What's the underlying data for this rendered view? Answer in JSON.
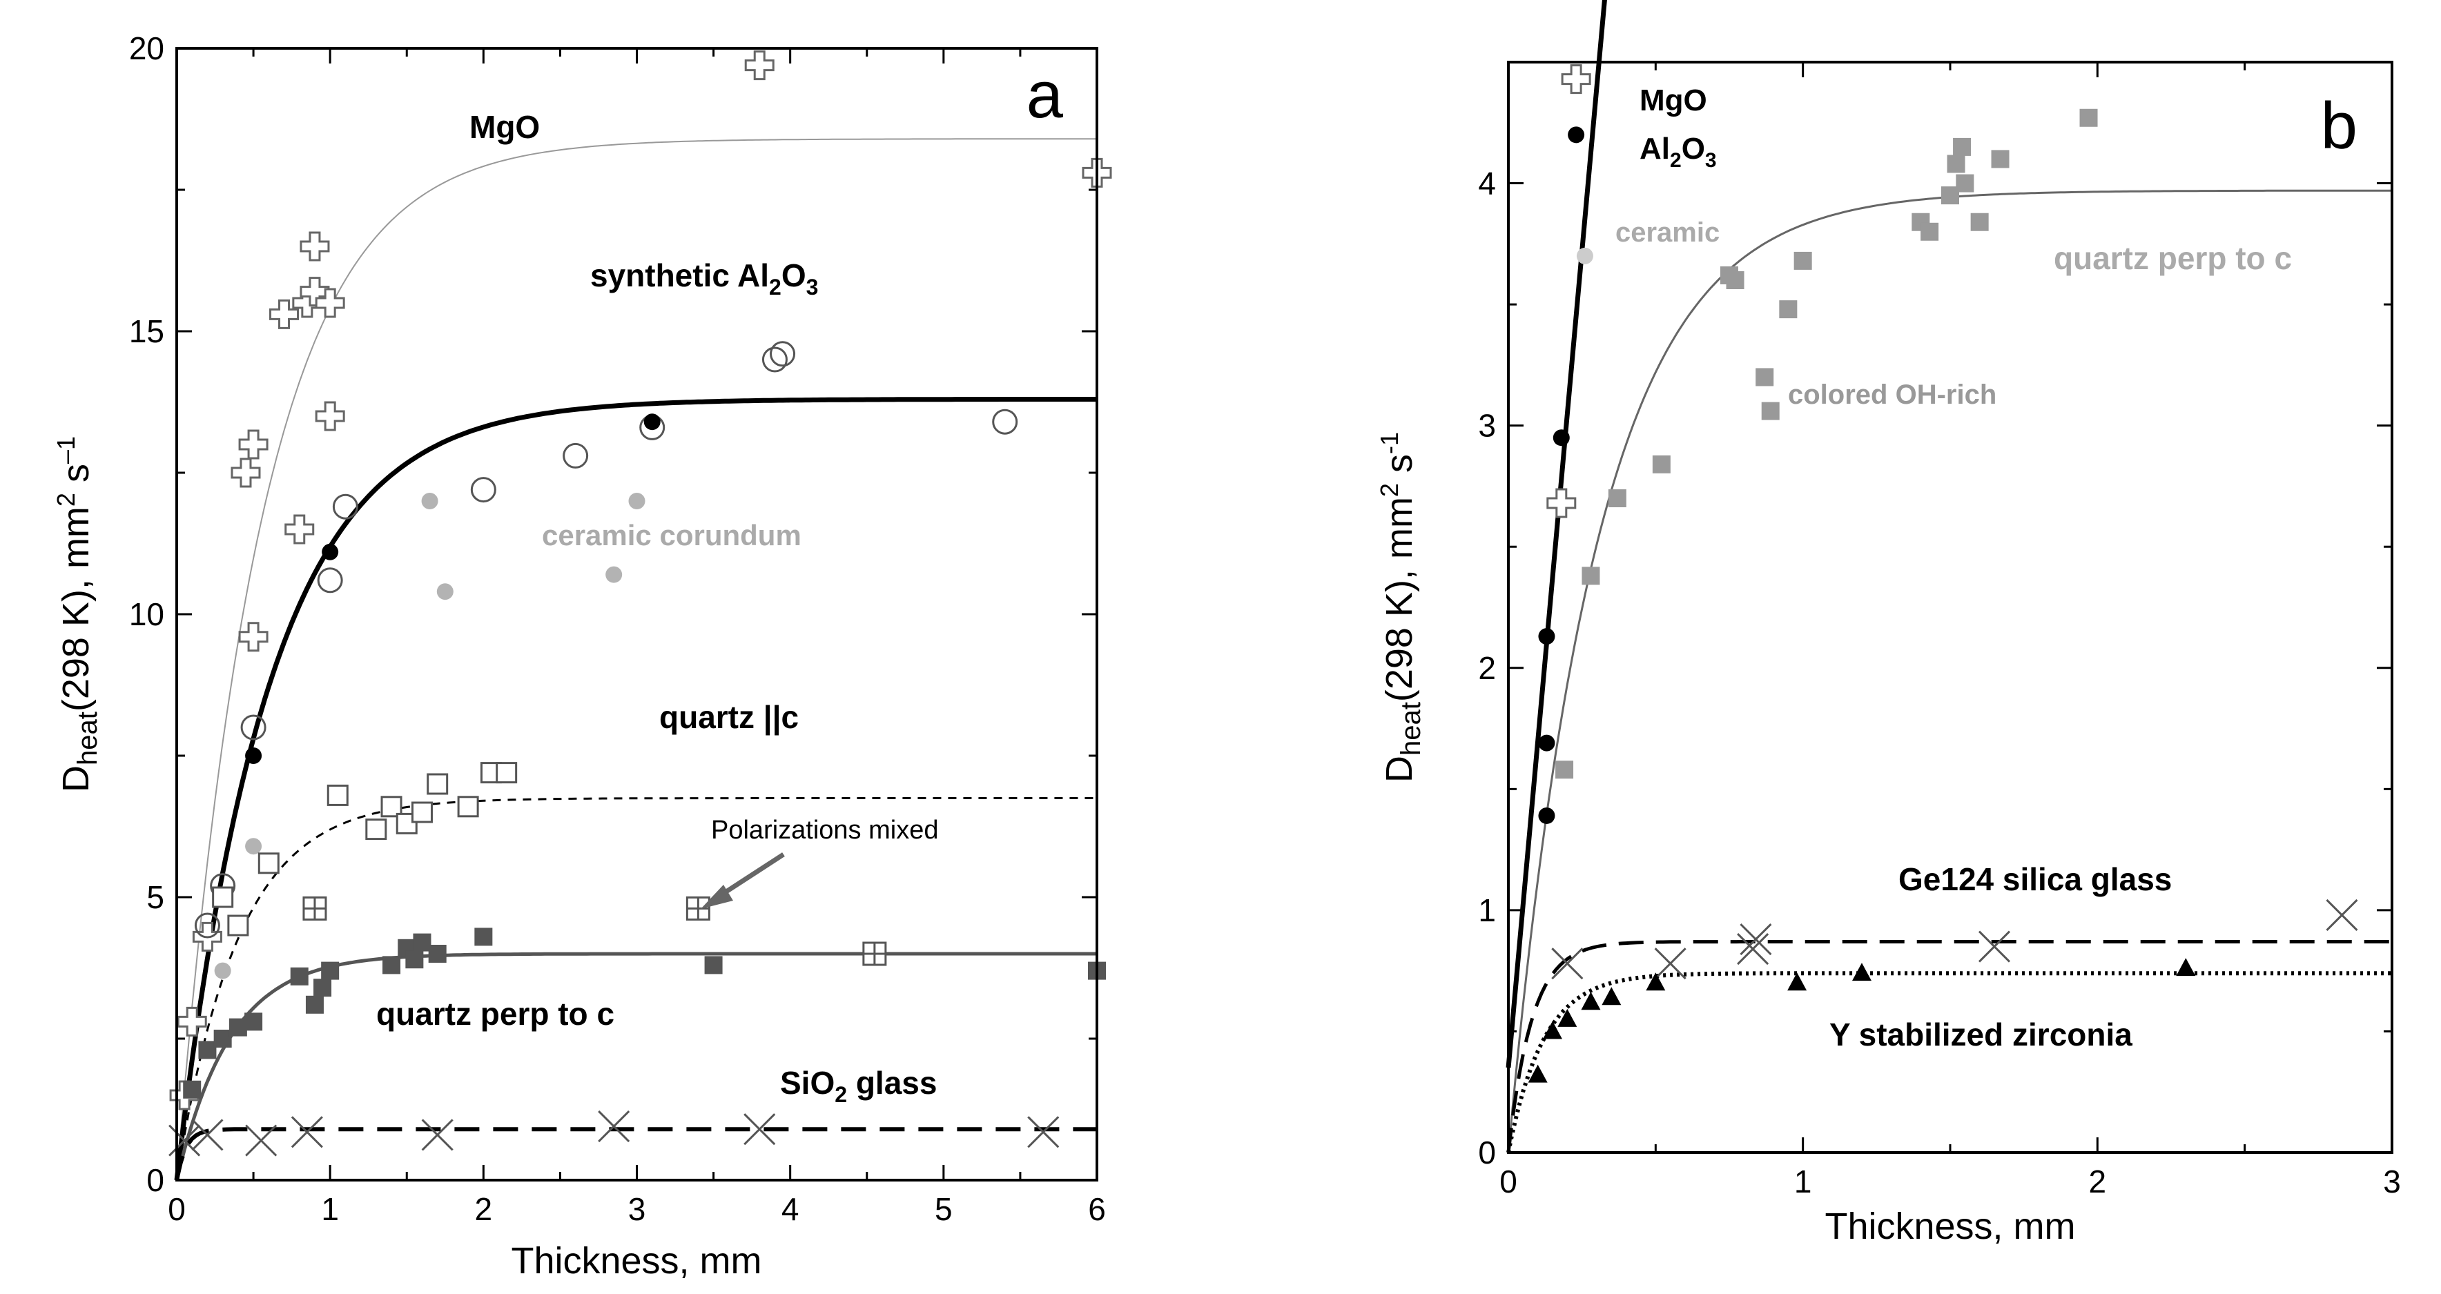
{
  "chart_data": [
    {
      "panel_label": "a",
      "type": "scatter",
      "xlabel": "Thickness, mm",
      "ylabel_parts": {
        "main": "D",
        "sub": "heat",
        "tail": "(298 K),  mm",
        "sup1": "2",
        "mid": " s",
        "sup2": "–1"
      },
      "xlim": [
        0,
        6
      ],
      "ylim": [
        0,
        20
      ],
      "xticks": [
        "0",
        "1",
        "2",
        "3",
        "4",
        "5",
        "6"
      ],
      "yticks": [
        "0",
        "5",
        "10",
        "15",
        "20"
      ],
      "annotations": {
        "mgo": "MgO",
        "al2o3_pre": "synthetic Al",
        "al2o3_sub1": "2",
        "al2o3_mid": "O",
        "al2o3_sub2": "3",
        "ceramic": "ceramic corundum",
        "quartz_par": "quartz ||c",
        "polarizations": "Polarizations mixed",
        "quartz_perp": "quartz perp to c",
        "sio2_pre": "SiO",
        "sio2_sub": "2",
        "sio2_post": " glass"
      },
      "series": [
        {
          "marker": "plus-open",
          "color": "#666666",
          "points": [
            [
              0.05,
              1.5
            ],
            [
              0.1,
              2.8
            ],
            [
              0.2,
              4.3
            ],
            [
              0.45,
              12.5
            ],
            [
              0.5,
              13.0
            ],
            [
              0.5,
              9.6
            ],
            [
              0.8,
              11.5
            ],
            [
              0.7,
              15.3
            ],
            [
              0.85,
              15.5
            ],
            [
              0.9,
              15.7
            ],
            [
              0.9,
              16.5
            ],
            [
              1.0,
              15.5
            ],
            [
              1.0,
              13.5
            ],
            [
              3.8,
              19.7
            ],
            [
              6.0,
              17.8
            ]
          ]
        },
        {
          "marker": "circle-open",
          "color": "#555555",
          "points": [
            [
              0.2,
              4.5
            ],
            [
              0.3,
              5.2
            ],
            [
              0.5,
              8.0
            ],
            [
              1.0,
              10.6
            ],
            [
              1.1,
              11.9
            ],
            [
              2.0,
              12.2
            ],
            [
              2.6,
              12.8
            ],
            [
              3.1,
              13.3
            ],
            [
              3.9,
              14.5
            ],
            [
              3.95,
              14.6
            ],
            [
              5.4,
              13.4
            ]
          ]
        },
        {
          "marker": "circle-filled",
          "color": "#000000",
          "points": [
            [
              0.5,
              7.5
            ],
            [
              1.0,
              11.1
            ],
            [
              3.1,
              13.4
            ]
          ]
        },
        {
          "marker": "circle-filled",
          "color": "#b3b3b3",
          "points": [
            [
              0.3,
              3.7
            ],
            [
              0.5,
              5.9
            ],
            [
              1.65,
              12.0
            ],
            [
              1.75,
              10.4
            ],
            [
              2.85,
              10.7
            ],
            [
              3.0,
              12.0
            ]
          ]
        },
        {
          "marker": "square-open",
          "color": "#555555",
          "points": [
            [
              0.3,
              5.0
            ],
            [
              0.4,
              4.5
            ],
            [
              0.6,
              5.6
            ],
            [
              1.05,
              6.8
            ],
            [
              1.3,
              6.2
            ],
            [
              1.4,
              6.6
            ],
            [
              1.5,
              6.3
            ],
            [
              1.6,
              6.5
            ],
            [
              1.7,
              7.0
            ],
            [
              1.9,
              6.6
            ],
            [
              2.05,
              7.2
            ],
            [
              2.15,
              7.2
            ]
          ]
        },
        {
          "marker": "square-cross",
          "color": "#555555",
          "points": [
            [
              0.9,
              4.8
            ],
            [
              3.4,
              4.8
            ],
            [
              4.55,
              4.0
            ]
          ]
        },
        {
          "marker": "square-filled",
          "color": "#555555",
          "points": [
            [
              0.1,
              1.6
            ],
            [
              0.2,
              2.3
            ],
            [
              0.3,
              2.5
            ],
            [
              0.4,
              2.7
            ],
            [
              0.5,
              2.8
            ],
            [
              0.8,
              3.6
            ],
            [
              0.9,
              3.1
            ],
            [
              0.95,
              3.4
            ],
            [
              1.0,
              3.7
            ],
            [
              1.4,
              3.8
            ],
            [
              1.5,
              4.1
            ],
            [
              1.55,
              3.9
            ],
            [
              1.6,
              4.2
            ],
            [
              1.7,
              4.0
            ],
            [
              2.0,
              4.3
            ],
            [
              3.5,
              3.8
            ],
            [
              6.0,
              3.7
            ]
          ]
        },
        {
          "marker": "x",
          "color": "#555555",
          "points": [
            [
              0.05,
              0.7
            ],
            [
              0.2,
              0.8
            ],
            [
              0.55,
              0.7
            ],
            [
              0.85,
              0.85
            ],
            [
              1.7,
              0.8
            ],
            [
              2.85,
              0.95
            ],
            [
              3.8,
              0.9
            ],
            [
              5.65,
              0.85
            ]
          ]
        }
      ],
      "curves": [
        {
          "name": "MgO",
          "formula": "saturating",
          "a": 18.4,
          "tau": 0.55,
          "color": "#999999",
          "width": 2,
          "dash": "",
          "xmax": 6
        },
        {
          "name": "synthetic Al2O3",
          "formula": "saturating",
          "a": 13.8,
          "tau": 0.6,
          "color": "#000000",
          "width": 7,
          "dash": "",
          "xmax": 6
        },
        {
          "name": "quartz ||c",
          "formula": "saturating",
          "a": 6.75,
          "tau": 0.4,
          "color": "#000000",
          "width": 3,
          "dash": "12 10",
          "xmax": 6
        },
        {
          "name": "quartz perp to c",
          "formula": "saturating",
          "a": 4.0,
          "tau": 0.35,
          "color": "#555555",
          "width": 5,
          "dash": "",
          "xmax": 6
        },
        {
          "name": "SiO2 glass",
          "formula": "saturating",
          "a": 0.9,
          "tau": 0.06,
          "color": "#000000",
          "width": 6,
          "dash": "36 20",
          "xmax": 6
        }
      ]
    },
    {
      "panel_label": "b",
      "type": "scatter",
      "xlabel": "Thickness, mm",
      "ylabel_parts": {
        "main": "D",
        "sub": "heat",
        "tail": "(298 K),  mm",
        "sup1": "2",
        "mid": " s",
        "sup2": "-1"
      },
      "xlim": [
        0,
        3
      ],
      "ylim": [
        0,
        4.5
      ],
      "xticks": [
        "0",
        "1",
        "2",
        "3"
      ],
      "yticks": [
        "0",
        "1",
        "2",
        "3",
        "4"
      ],
      "annotations": {
        "mgo": "MgO",
        "al2o3_pre": "Al",
        "al2o3_sub1": "2",
        "al2o3_mid": "O",
        "al2o3_sub2": "3",
        "ceramic": "ceramic",
        "quartz_perp": "quartz perp to c",
        "colored": "colored OH-rich",
        "ge124": "Ge124 silica glass",
        "ysz": "Y stabilized zirconia"
      },
      "series": [
        {
          "marker": "plus-open",
          "color": "#666666",
          "points": [
            [
              0.23,
              4.43
            ],
            [
              0.18,
              2.68
            ]
          ]
        },
        {
          "marker": "circle-filled",
          "color": "#000000",
          "points": [
            [
              0.23,
              4.2
            ],
            [
              0.18,
              2.95
            ],
            [
              0.13,
              2.13
            ],
            [
              0.13,
              1.69
            ],
            [
              0.13,
              1.39
            ]
          ]
        },
        {
          "marker": "circle-filled",
          "color": "#cccccc",
          "points": [
            [
              0.26,
              3.7
            ]
          ]
        },
        {
          "marker": "square-filled",
          "color": "#999999",
          "points": [
            [
              0.19,
              1.58
            ],
            [
              0.28,
              2.38
            ],
            [
              0.37,
              2.7
            ],
            [
              0.52,
              2.84
            ],
            [
              0.75,
              3.62
            ],
            [
              0.77,
              3.6
            ],
            [
              0.87,
              3.2
            ],
            [
              0.89,
              3.06
            ],
            [
              0.95,
              3.48
            ],
            [
              1.0,
              3.68
            ],
            [
              1.4,
              3.84
            ],
            [
              1.43,
              3.8
            ],
            [
              1.5,
              3.95
            ],
            [
              1.52,
              4.08
            ],
            [
              1.54,
              4.15
            ],
            [
              1.55,
              4.0
            ],
            [
              1.6,
              3.84
            ],
            [
              1.67,
              4.1
            ],
            [
              1.97,
              4.27
            ]
          ]
        },
        {
          "marker": "x",
          "color": "#555555",
          "points": [
            [
              0.2,
              0.78
            ],
            [
              0.55,
              0.78
            ],
            [
              0.83,
              0.84
            ],
            [
              0.84,
              0.88
            ],
            [
              1.65,
              0.85
            ],
            [
              2.83,
              0.98
            ]
          ]
        },
        {
          "marker": "triangle-filled",
          "color": "#000000",
          "points": [
            [
              0.1,
              0.32
            ],
            [
              0.15,
              0.5
            ],
            [
              0.2,
              0.55
            ],
            [
              0.28,
              0.62
            ],
            [
              0.35,
              0.64
            ],
            [
              0.5,
              0.7
            ],
            [
              0.98,
              0.7
            ],
            [
              1.2,
              0.74
            ],
            [
              2.3,
              0.76
            ]
          ]
        }
      ],
      "curves": [
        {
          "name": "MgO / Al2O3",
          "formula": "linear",
          "x0": 0.0,
          "y0": 0.35,
          "x1": 0.33,
          "y1": 4.8,
          "color": "#000000",
          "width": 7,
          "dash": ""
        },
        {
          "name": "quartz perp to c",
          "formula": "saturating",
          "a": 3.97,
          "tau": 0.3,
          "color": "#666666",
          "width": 3,
          "dash": "",
          "xmax": 3
        },
        {
          "name": "Ge124 silica glass",
          "formula": "saturating",
          "a": 0.87,
          "tau": 0.08,
          "color": "#000000",
          "width": 5,
          "dash": "36 18",
          "xmax": 3
        },
        {
          "name": "Y stabilized zirconia",
          "formula": "saturating",
          "a": 0.74,
          "tau": 0.12,
          "color": "#000000",
          "width": 6,
          "dash": "4 6",
          "xmax": 3
        }
      ]
    }
  ]
}
